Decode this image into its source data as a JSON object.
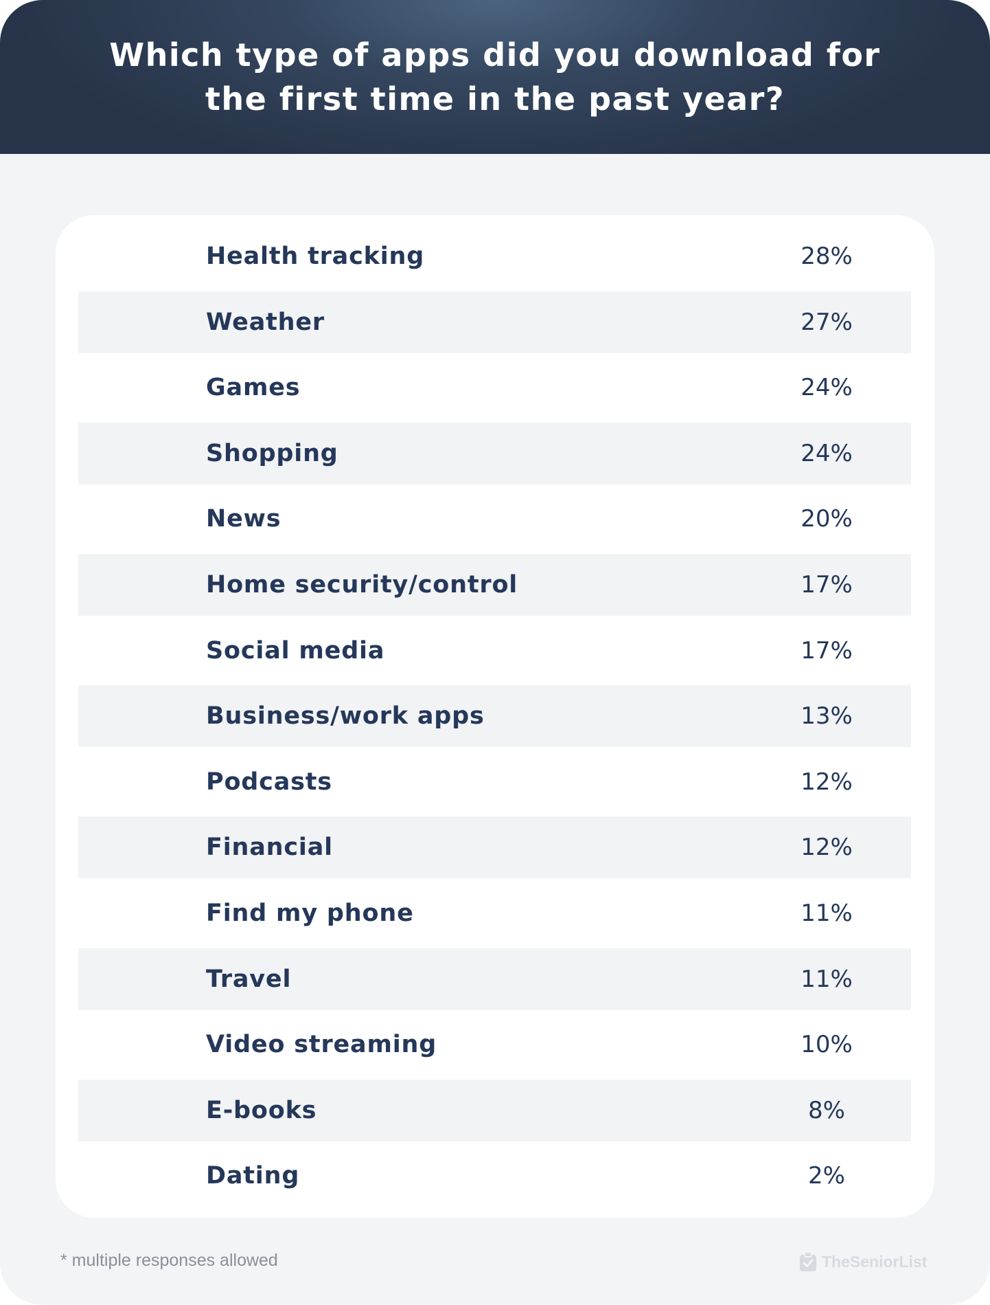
{
  "header": {
    "title": "Which type of apps did you download for the first time in the past year?"
  },
  "chart_data": {
    "type": "table",
    "categories": [
      "Health tracking",
      "Weather",
      "Games",
      "Shopping",
      "News",
      "Home security/control",
      "Social media",
      "Business/work apps",
      "Podcasts",
      "Financial",
      "Find my phone",
      "Travel",
      "Video streaming",
      "E-books",
      "Dating"
    ],
    "values": [
      28,
      27,
      24,
      24,
      20,
      17,
      17,
      13,
      12,
      12,
      11,
      11,
      10,
      8,
      2
    ],
    "value_labels": [
      "28%",
      "27%",
      "24%",
      "24%",
      "20%",
      "17%",
      "17%",
      "13%",
      "12%",
      "12%",
      "11%",
      "11%",
      "10%",
      "8%",
      "2%"
    ],
    "title": "Which type of apps did you download for the first time in the past year?",
    "legend": "none",
    "grid": false
  },
  "footer": {
    "note": "* multiple responses allowed",
    "brand": "TheSeniorList"
  },
  "colors": {
    "header_bg": "#2d3b52",
    "text": "#25385a",
    "row_shade": "#f2f3f5",
    "page_bg": "#f3f4f6",
    "panel_bg": "#ffffff"
  },
  "icons": {
    "brand": "clipboard-check-icon"
  }
}
